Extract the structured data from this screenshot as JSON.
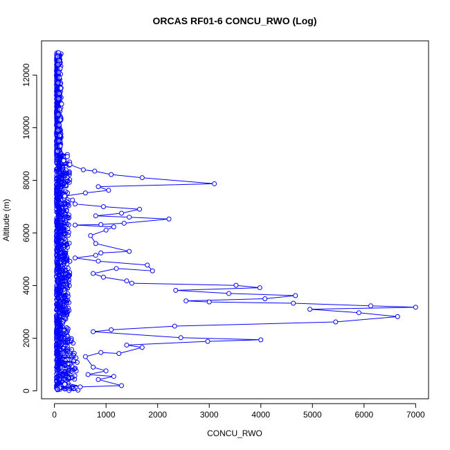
{
  "chart_data": {
    "type": "scatter",
    "title": "ORCAS RF01-6 CONCU_RWO (Log)",
    "xlabel": "CONCU_RWO",
    "ylabel": "Altitude (m)",
    "xlim": [
      -250,
      7250
    ],
    "ylim": [
      -300,
      13300
    ],
    "x_ticks": [
      0,
      1000,
      2000,
      3000,
      4000,
      5000,
      6000,
      7000
    ],
    "y_ticks": [
      0,
      2000,
      4000,
      6000,
      8000,
      10000,
      12000
    ],
    "grid": false,
    "marker": "open-circle",
    "connected": true,
    "series": [
      {
        "color": "#0000ff",
        "points": [
          [
            80,
            12850
          ],
          [
            60,
            12700
          ],
          [
            90,
            12550
          ],
          [
            70,
            12400
          ],
          [
            110,
            12250
          ],
          [
            85,
            12100
          ],
          [
            95,
            11900
          ],
          [
            70,
            11700
          ],
          [
            120,
            11500
          ],
          [
            90,
            11300
          ],
          [
            80,
            11100
          ],
          [
            140,
            10900
          ],
          [
            100,
            10700
          ],
          [
            75,
            10500
          ],
          [
            110,
            10300
          ],
          [
            90,
            10100
          ],
          [
            70,
            9900
          ],
          [
            100,
            9700
          ],
          [
            85,
            9500
          ],
          [
            110,
            9300
          ],
          [
            60,
            9100
          ],
          [
            250,
            8900
          ],
          [
            180,
            8750
          ],
          [
            300,
            8600
          ],
          [
            560,
            8400
          ],
          [
            780,
            8350
          ],
          [
            1100,
            8220
          ],
          [
            1700,
            8100
          ],
          [
            3100,
            7870
          ],
          [
            850,
            7760
          ],
          [
            1050,
            7620
          ],
          [
            600,
            7520
          ],
          [
            200,
            7400
          ],
          [
            350,
            7250
          ],
          [
            400,
            7100
          ],
          [
            950,
            7000
          ],
          [
            1650,
            6900
          ],
          [
            1300,
            6750
          ],
          [
            800,
            6650
          ],
          [
            1450,
            6600
          ],
          [
            2220,
            6530
          ],
          [
            1350,
            6370
          ],
          [
            900,
            6320
          ],
          [
            400,
            6300
          ],
          [
            1150,
            6230
          ],
          [
            1000,
            6110
          ],
          [
            700,
            5900
          ],
          [
            800,
            5600
          ],
          [
            1450,
            5300
          ],
          [
            900,
            5240
          ],
          [
            800,
            5150
          ],
          [
            400,
            5050
          ],
          [
            850,
            4930
          ],
          [
            1800,
            4780
          ],
          [
            1900,
            4560
          ],
          [
            1200,
            4650
          ],
          [
            750,
            4460
          ],
          [
            950,
            4320
          ],
          [
            1400,
            4180
          ],
          [
            1500,
            4090
          ],
          [
            3520,
            4010
          ],
          [
            3980,
            3920
          ],
          [
            2350,
            3820
          ],
          [
            3380,
            3700
          ],
          [
            4670,
            3620
          ],
          [
            4080,
            3500
          ],
          [
            2550,
            3420
          ],
          [
            3000,
            3380
          ],
          [
            4630,
            3330
          ],
          [
            6130,
            3230
          ],
          [
            7000,
            3180
          ],
          [
            4950,
            3100
          ],
          [
            5900,
            2970
          ],
          [
            6650,
            2820
          ],
          [
            5450,
            2620
          ],
          [
            2330,
            2460
          ],
          [
            1100,
            2320
          ],
          [
            750,
            2250
          ],
          [
            2450,
            2020
          ],
          [
            4000,
            1940
          ],
          [
            2970,
            1880
          ],
          [
            1400,
            1740
          ],
          [
            1700,
            1650
          ],
          [
            1250,
            1420
          ],
          [
            900,
            1460
          ],
          [
            600,
            1300
          ],
          [
            750,
            900
          ],
          [
            1000,
            760
          ],
          [
            650,
            620
          ],
          [
            1150,
            550
          ],
          [
            850,
            430
          ],
          [
            1300,
            200
          ],
          [
            500,
            150
          ],
          [
            200,
            250
          ],
          [
            100,
            120
          ],
          [
            60,
            60
          ]
        ],
        "dense_core": [
          [
            70,
            12500
          ],
          [
            120,
            12000
          ],
          [
            60,
            11500
          ],
          [
            130,
            11000
          ],
          [
            80,
            10500
          ],
          [
            140,
            10000
          ],
          [
            90,
            9500
          ],
          [
            160,
            9000
          ],
          [
            100,
            8500
          ],
          [
            180,
            8000
          ],
          [
            120,
            7500
          ],
          [
            200,
            7000
          ],
          [
            130,
            6500
          ],
          [
            220,
            6000
          ],
          [
            150,
            5500
          ],
          [
            250,
            5000
          ],
          [
            160,
            4500
          ],
          [
            280,
            4000
          ],
          [
            170,
            3500
          ],
          [
            300,
            3000
          ],
          [
            180,
            2500
          ],
          [
            320,
            2000
          ],
          [
            190,
            1500
          ],
          [
            350,
            1000
          ],
          [
            200,
            700
          ],
          [
            400,
            500
          ],
          [
            220,
            300
          ],
          [
            450,
            200
          ],
          [
            150,
            100
          ],
          [
            80,
            50
          ]
        ]
      }
    ]
  }
}
